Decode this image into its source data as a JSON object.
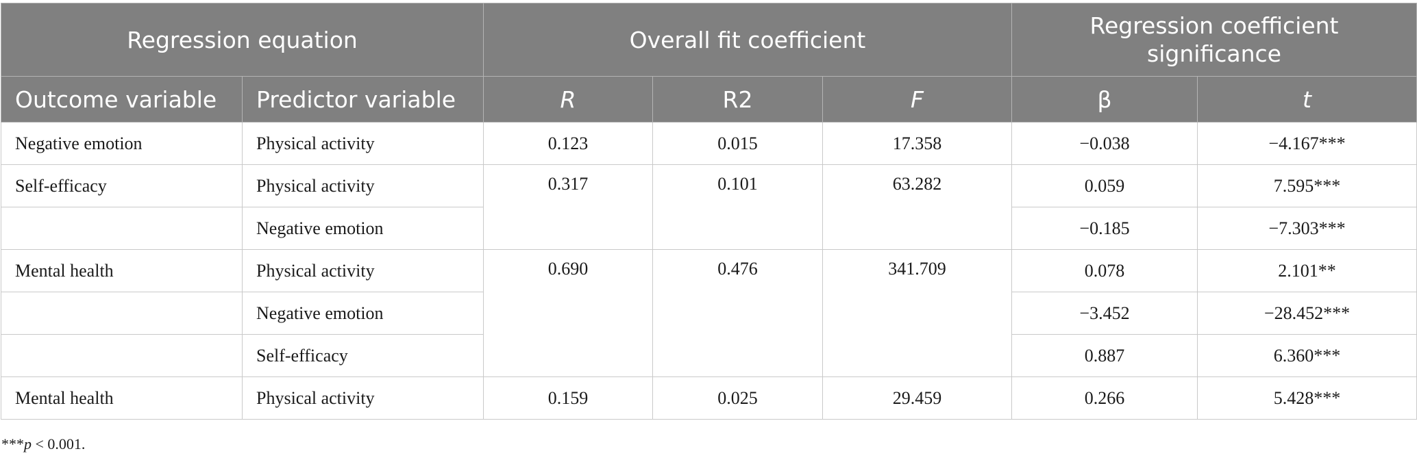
{
  "header": {
    "group_regression_equation": "Regression equation",
    "group_overall_fit": "Overall fit coefficient",
    "group_coefficient_significance": "Regression coefficient significance",
    "col_outcome": "Outcome variable",
    "col_predictor": "Predictor variable",
    "col_r": "R",
    "col_r2": "R2",
    "col_f": "F",
    "col_beta": "β",
    "col_t": "t"
  },
  "rows": [
    {
      "outcome": "Negative emotion",
      "predictor": "Physical activity",
      "r": "0.123",
      "r2": "0.015",
      "f": "17.358",
      "beta": "−0.038",
      "t": "−4.167***"
    },
    {
      "outcome": "Self-efficacy",
      "predictor": "Physical activity",
      "r": "0.317",
      "r2": "0.101",
      "f": "63.282",
      "beta": "0.059",
      "t": "7.595***"
    },
    {
      "outcome": "",
      "predictor": "Negative emotion",
      "beta": "−0.185",
      "t": "−7.303***"
    },
    {
      "outcome": "Mental health",
      "predictor": "Physical activity",
      "r": "0.690",
      "r2": "0.476",
      "f": "341.709",
      "beta": "0.078",
      "t": "2.101**"
    },
    {
      "outcome": "",
      "predictor": "Negative emotion",
      "beta": "−3.452",
      "t": "−28.452***"
    },
    {
      "outcome": "",
      "predictor": "Self-efficacy",
      "beta": "0.887",
      "t": "6.360***"
    },
    {
      "outcome": "Mental health",
      "predictor": "Physical activity",
      "r": "0.159",
      "r2": "0.025",
      "f": "29.459",
      "beta": "0.266",
      "t": "5.428***"
    }
  ],
  "footnote": {
    "stars": "***",
    "p": "p",
    "rest": " < 0.001."
  }
}
